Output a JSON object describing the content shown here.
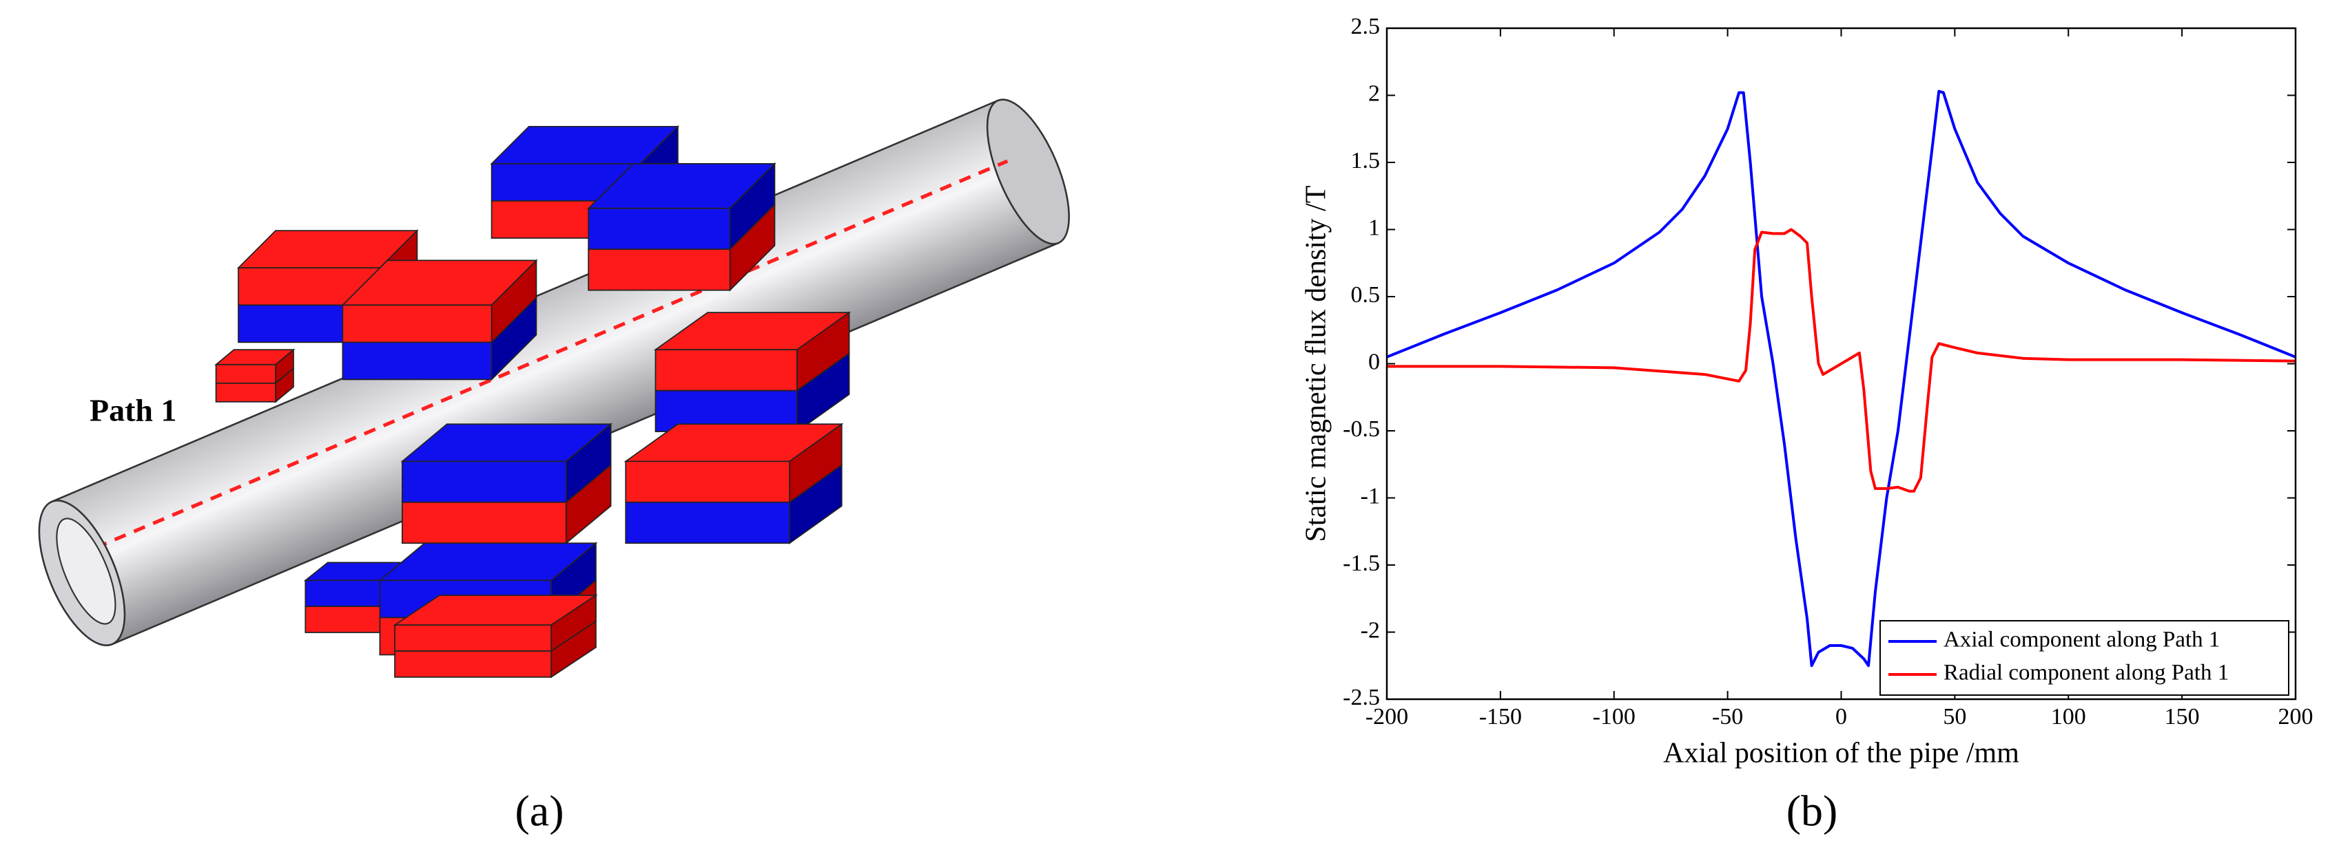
{
  "illustration": {
    "label": "Path 1",
    "caption": "(a)"
  },
  "chart_data": {
    "type": "line",
    "caption": "(b)",
    "xlabel": "Axial position of the pipe /mm",
    "ylabel": "Static magnetic flux density /T",
    "xlim": [
      -200,
      200
    ],
    "xticks": [
      -200,
      -150,
      -100,
      -50,
      0,
      50,
      100,
      150,
      200
    ],
    "ylim": [
      -2.5,
      2.5
    ],
    "yticks": [
      -2.5,
      -2,
      -1.5,
      -1,
      -0.5,
      0,
      0.5,
      1,
      1.5,
      2,
      2.5
    ],
    "grid": false,
    "legend": "lower right",
    "series": [
      {
        "name": "Axial component along Path 1",
        "color": "#0000ff",
        "x": [
          -200,
          -175,
          -150,
          -125,
          -100,
          -80,
          -70,
          -60,
          -50,
          -45,
          -43,
          -40,
          -37,
          -35,
          -30,
          -25,
          -20,
          -15,
          -13,
          -10,
          -5,
          0,
          5,
          10,
          12,
          15,
          20,
          25,
          30,
          35,
          40,
          43,
          45,
          50,
          60,
          70,
          80,
          100,
          125,
          150,
          175,
          200
        ],
        "values": [
          0.05,
          0.22,
          0.38,
          0.55,
          0.75,
          0.98,
          1.15,
          1.4,
          1.75,
          2.02,
          2.02,
          1.5,
          0.9,
          0.5,
          0.0,
          -0.6,
          -1.3,
          -1.9,
          -2.25,
          -2.15,
          -2.1,
          -2.1,
          -2.12,
          -2.2,
          -2.25,
          -1.7,
          -1.0,
          -0.5,
          0.2,
          0.9,
          1.6,
          2.03,
          2.02,
          1.75,
          1.35,
          1.12,
          0.95,
          0.75,
          0.55,
          0.38,
          0.22,
          0.05
        ]
      },
      {
        "name": "Radial component along Path 1",
        "color": "#ff0000",
        "x": [
          -200,
          -150,
          -100,
          -60,
          -45,
          -42,
          -40,
          -38,
          -35,
          -30,
          -25,
          -22,
          -18,
          -15,
          -13,
          -10,
          -8,
          -5,
          0,
          5,
          8,
          10,
          13,
          15,
          20,
          25,
          30,
          32,
          35,
          38,
          40,
          43,
          50,
          60,
          80,
          100,
          150,
          200
        ],
        "values": [
          -0.02,
          -0.02,
          -0.03,
          -0.08,
          -0.13,
          -0.05,
          0.3,
          0.85,
          0.98,
          0.97,
          0.97,
          1.0,
          0.95,
          0.9,
          0.5,
          0.0,
          -0.08,
          -0.05,
          0.0,
          0.05,
          0.08,
          -0.2,
          -0.8,
          -0.93,
          -0.93,
          -0.92,
          -0.95,
          -0.95,
          -0.85,
          -0.3,
          0.05,
          0.15,
          0.12,
          0.08,
          0.04,
          0.03,
          0.03,
          0.02
        ]
      }
    ]
  }
}
